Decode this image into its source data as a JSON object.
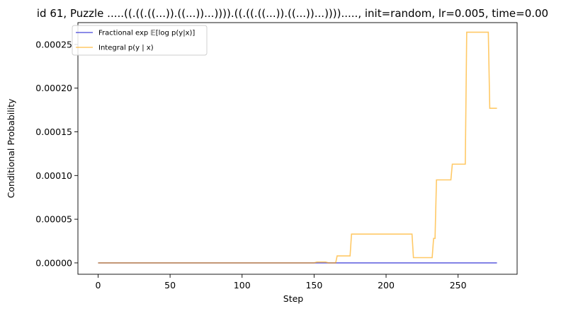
{
  "chart_data": {
    "type": "line",
    "title": "id 61, Puzzle .....((.((.((...)).((...))...)))).((.((.((...)).((...))...)))).....,  init=random, lr=0.005, time=0.00",
    "xlabel": "Step",
    "ylabel": "Conditional Probability",
    "xlim": [
      -14,
      291
    ],
    "ylim": [
      -1.3e-05,
      0.000275
    ],
    "xticks": [
      0,
      50,
      100,
      150,
      200,
      250
    ],
    "yticks": [
      0.0,
      5e-05,
      0.0001,
      0.00015,
      0.0002,
      0.00025
    ],
    "ytick_labels": [
      "0.00000",
      "0.00005",
      "0.00010",
      "0.00015",
      "0.00020",
      "0.00025"
    ],
    "legend_position": "top-left",
    "grid": false,
    "series": [
      {
        "name": "Fractional exp 𝔼[log p(y|x)]",
        "color": "#0000cc",
        "x": [
          0,
          277
        ],
        "y": [
          0.0,
          0.0
        ]
      },
      {
        "name": "Integral p(y | x)",
        "color": "#ffa500",
        "x": [
          0,
          150,
          152,
          158,
          160,
          165,
          166,
          170,
          175,
          176,
          218,
          219,
          232,
          233,
          234,
          235,
          245,
          246,
          251,
          252,
          255,
          256,
          271,
          272,
          275,
          277
        ],
        "y": [
          0.0,
          0.0,
          1e-06,
          1e-06,
          0.0,
          0.0,
          8e-06,
          8e-06,
          8e-06,
          3.3e-05,
          3.3e-05,
          6e-06,
          6e-06,
          2.8e-05,
          2.8e-05,
          9.5e-05,
          9.5e-05,
          0.000113,
          0.000113,
          0.000113,
          0.000113,
          0.000264,
          0.000264,
          0.000177,
          0.000177,
          0.000177
        ]
      }
    ]
  }
}
